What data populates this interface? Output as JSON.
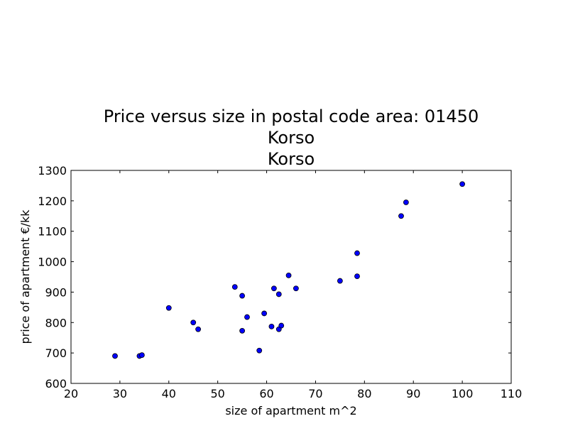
{
  "chart_data": {
    "type": "scatter",
    "title_lines": [
      "Price versus size in postal code area: 01450",
      "Korso",
      "Korso"
    ],
    "xlabel": "size of apartment m^2",
    "ylabel": "price of apartment €/kk",
    "xlim": [
      20,
      110
    ],
    "ylim": [
      600,
      1300
    ],
    "xticks": [
      20,
      30,
      40,
      50,
      60,
      70,
      80,
      90,
      100,
      110
    ],
    "yticks": [
      600,
      700,
      800,
      900,
      1000,
      1100,
      1200,
      1300
    ],
    "grid": false,
    "marker_color": "#0000ff",
    "marker_edge_color": "#000000",
    "points": [
      {
        "x": 29,
        "y": 690
      },
      {
        "x": 34,
        "y": 690
      },
      {
        "x": 34.5,
        "y": 693
      },
      {
        "x": 40,
        "y": 848
      },
      {
        "x": 45,
        "y": 800
      },
      {
        "x": 46,
        "y": 778
      },
      {
        "x": 53.5,
        "y": 917
      },
      {
        "x": 55,
        "y": 888
      },
      {
        "x": 55,
        "y": 773
      },
      {
        "x": 56,
        "y": 818
      },
      {
        "x": 58.5,
        "y": 708
      },
      {
        "x": 59.5,
        "y": 830
      },
      {
        "x": 61,
        "y": 787
      },
      {
        "x": 61.5,
        "y": 912
      },
      {
        "x": 62.5,
        "y": 893
      },
      {
        "x": 62.5,
        "y": 778
      },
      {
        "x": 63,
        "y": 790
      },
      {
        "x": 64.5,
        "y": 955
      },
      {
        "x": 66,
        "y": 912
      },
      {
        "x": 75,
        "y": 937
      },
      {
        "x": 78.5,
        "y": 1028
      },
      {
        "x": 78.5,
        "y": 952
      },
      {
        "x": 87.5,
        "y": 1150
      },
      {
        "x": 88.5,
        "y": 1195
      },
      {
        "x": 100,
        "y": 1255
      }
    ]
  }
}
